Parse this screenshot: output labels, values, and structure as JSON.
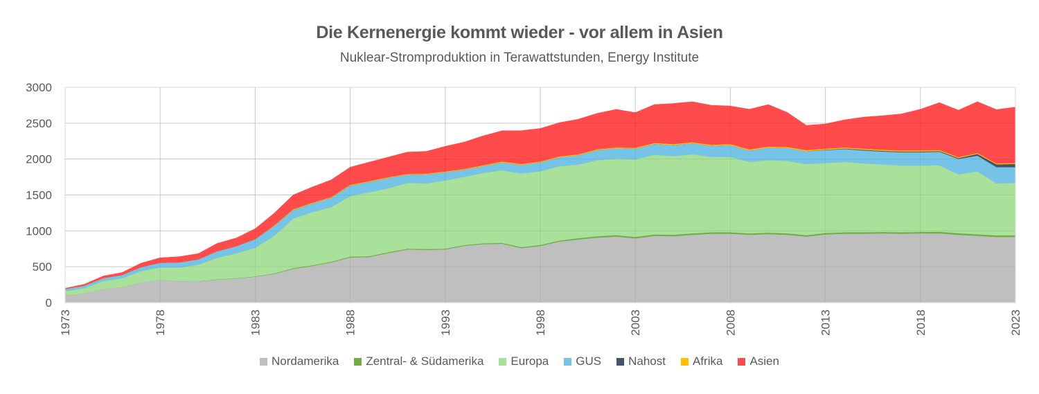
{
  "chart_data": {
    "type": "area",
    "stacked": true,
    "title": "Die Kernenergie kommt wieder - vor allem in Asien",
    "subtitle": "Nuklear-Stromproduktion in Terawattstunden, Energy Institute",
    "xlabel": "",
    "ylabel": "",
    "ylim": [
      0,
      3000
    ],
    "yticks": [
      0,
      500,
      1000,
      1500,
      2000,
      2500,
      3000
    ],
    "xlim": [
      1973,
      2023
    ],
    "xticks": [
      1973,
      1978,
      1983,
      1988,
      1993,
      1998,
      2003,
      2008,
      2013,
      2018,
      2023
    ],
    "grid": true,
    "legend_position": "bottom",
    "x": [
      1973,
      1974,
      1975,
      1976,
      1977,
      1978,
      1979,
      1980,
      1981,
      1982,
      1983,
      1984,
      1985,
      1986,
      1987,
      1988,
      1989,
      1990,
      1991,
      1992,
      1993,
      1994,
      1995,
      1996,
      1997,
      1998,
      1999,
      2000,
      2001,
      2002,
      2003,
      2004,
      2005,
      2006,
      2007,
      2008,
      2009,
      2010,
      2011,
      2012,
      2013,
      2014,
      2015,
      2016,
      2017,
      2018,
      2019,
      2020,
      2021,
      2022,
      2023
    ],
    "series": [
      {
        "name": "Nordamerika",
        "color": "#bfbfbf",
        "values": [
          100,
          130,
          190,
          215,
          280,
          320,
          300,
          295,
          320,
          335,
          360,
          400,
          470,
          510,
          560,
          630,
          635,
          690,
          740,
          735,
          740,
          790,
          815,
          820,
          760,
          790,
          850,
          880,
          905,
          920,
          895,
          930,
          925,
          945,
          960,
          960,
          945,
          955,
          945,
          920,
          950,
          960,
          960,
          965,
          960,
          965,
          965,
          945,
          930,
          915,
          915
        ]
      },
      {
        "name": "Zentral- & Südamerika",
        "color": "#70ad47",
        "values": [
          0,
          0,
          0,
          0,
          0,
          0,
          0,
          2,
          5,
          5,
          5,
          8,
          10,
          10,
          10,
          12,
          12,
          12,
          12,
          12,
          12,
          12,
          12,
          13,
          14,
          14,
          15,
          18,
          20,
          20,
          20,
          20,
          20,
          20,
          20,
          20,
          20,
          20,
          20,
          20,
          20,
          20,
          20,
          20,
          20,
          20,
          22,
          22,
          22,
          22,
          22
        ]
      },
      {
        "name": "Europa",
        "color": "#a9e09a",
        "values": [
          60,
          70,
          110,
          125,
          160,
          170,
          190,
          230,
          300,
          345,
          400,
          520,
          690,
          740,
          760,
          840,
          890,
          890,
          915,
          915,
          950,
          950,
          980,
          1010,
          1025,
          1025,
          1035,
          1025,
          1060,
          1065,
          1080,
          1110,
          1095,
          1100,
          1050,
          1050,
          995,
          1010,
          1010,
          990,
          975,
          980,
          960,
          940,
          930,
          925,
          925,
          820,
          875,
          725,
          730
        ]
      },
      {
        "name": "GUS",
        "color": "#76c3e8",
        "values": [
          30,
          35,
          40,
          45,
          55,
          65,
          70,
          75,
          90,
          100,
          120,
          140,
          120,
          120,
          130,
          150,
          145,
          145,
          115,
          125,
          115,
          100,
          95,
          110,
          120,
          125,
          125,
          130,
          140,
          145,
          150,
          150,
          155,
          155,
          155,
          165,
          160,
          175,
          180,
          180,
          180,
          180,
          180,
          180,
          185,
          185,
          190,
          215,
          220,
          225,
          220
        ]
      },
      {
        "name": "Nahost",
        "color": "#44546a",
        "values": [
          0,
          0,
          0,
          0,
          0,
          0,
          0,
          0,
          0,
          0,
          0,
          0,
          0,
          0,
          0,
          0,
          0,
          0,
          0,
          0,
          0,
          0,
          0,
          0,
          0,
          0,
          0,
          0,
          0,
          0,
          0,
          0,
          0,
          0,
          0,
          0,
          0,
          0,
          0,
          0,
          5,
          7,
          10,
          10,
          10,
          10,
          10,
          12,
          25,
          40,
          45
        ]
      },
      {
        "name": "Afrika",
        "color": "#ffc000",
        "values": [
          0,
          0,
          0,
          0,
          0,
          0,
          0,
          0,
          0,
          0,
          0,
          8,
          10,
          10,
          10,
          10,
          10,
          10,
          10,
          10,
          10,
          10,
          12,
          12,
          12,
          12,
          12,
          12,
          12,
          12,
          12,
          14,
          14,
          14,
          14,
          14,
          14,
          14,
          14,
          14,
          14,
          14,
          14,
          14,
          14,
          14,
          14,
          12,
          12,
          12,
          12
        ]
      },
      {
        "name": "Asien",
        "color": "#ff4b4b",
        "values": [
          10,
          20,
          30,
          35,
          55,
          70,
          80,
          80,
          110,
          115,
          145,
          170,
          200,
          220,
          240,
          245,
          265,
          280,
          305,
          310,
          350,
          375,
          410,
          430,
          465,
          460,
          470,
          490,
          500,
          530,
          490,
          535,
          565,
          565,
          550,
          530,
          560,
          585,
          480,
          345,
          345,
          385,
          440,
          475,
          510,
          575,
          660,
          655,
          715,
          750,
          780
        ]
      }
    ]
  }
}
